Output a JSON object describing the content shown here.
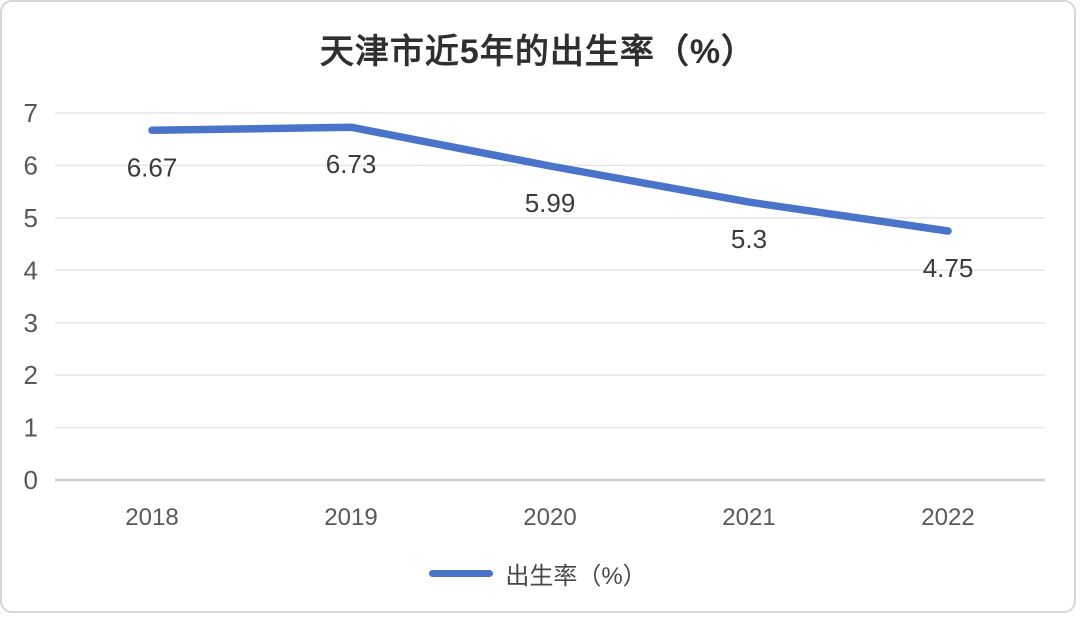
{
  "chart_data": {
    "type": "line",
    "title": "天津市近5年的出生率（%）",
    "categories": [
      "2018",
      "2019",
      "2020",
      "2021",
      "2022"
    ],
    "series": [
      {
        "name": "出生率（%）",
        "values": [
          6.67,
          6.73,
          5.99,
          5.3,
          4.75
        ],
        "data_labels": [
          "6.67",
          "6.73",
          "5.99",
          "5.3",
          "4.75"
        ],
        "color": "#4a74c9"
      }
    ],
    "xlabel": "",
    "ylabel": "",
    "ylim": [
      0,
      7
    ],
    "yticks": [
      0,
      1,
      2,
      3,
      4,
      5,
      6,
      7
    ],
    "grid": true,
    "legend_position": "bottom"
  },
  "legend": {
    "label": "出生率（%）"
  },
  "colors": {
    "line": "#4a74c9",
    "gridline": "#e6e6e8",
    "zero_line": "#cbcdd1",
    "y_tick_text": "#57585a",
    "x_tick_text": "#58595b",
    "data_label_text": "#3b3b3d",
    "title_text": "#2f2f31",
    "card_border": "#d7d7d9",
    "background": "#ffffff"
  }
}
